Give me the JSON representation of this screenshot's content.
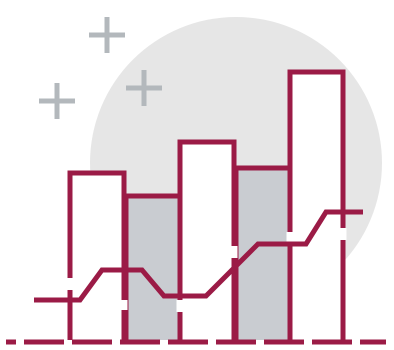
{
  "illustration": {
    "kind": "bar-and-line-chart-icon",
    "decorations": [
      "plus-sparkle-icon",
      "plus-sparkle-icon",
      "plus-sparkle-icon",
      "background-circle"
    ],
    "colors": {
      "stroke": "#9b1b46",
      "bar_fill_light": "#ffffff",
      "bar_fill_gray": "#c9ccd1",
      "circle": "#e6e6e6",
      "sparkle": "#b3b8bc"
    }
  }
}
